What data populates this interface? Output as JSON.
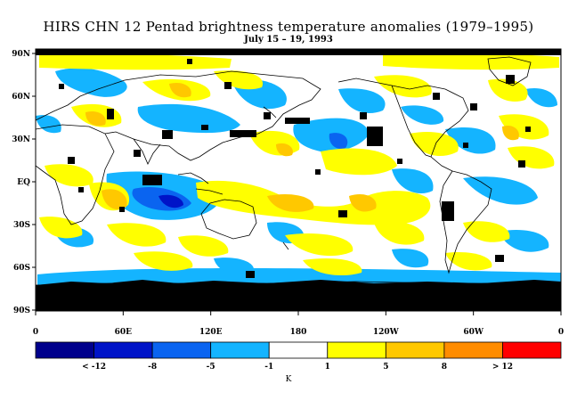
{
  "title": "HIRS CHN 12 Pentad brightness temperature anomalies (1979–1995)",
  "subtitle": "July 15 – 19, 1993",
  "map": {
    "lat_labels": [
      "90N",
      "60N",
      "30N",
      "EQ",
      "30S",
      "60S",
      "90S"
    ],
    "lon_labels": [
      "0",
      "60E",
      "120E",
      "180",
      "120W",
      "60W",
      "0"
    ],
    "missing_data_color": "#000000",
    "coastline_color": "#000000"
  },
  "legend": {
    "unit": "K",
    "colors": [
      "#00008c",
      "#0014c8",
      "#0a64f0",
      "#14b4ff",
      "#ffffff",
      "#ffff00",
      "#ffc800",
      "#ff8c00",
      "#ff0000"
    ],
    "labels": [
      "< -12",
      "-8",
      "-5",
      "-1",
      "1",
      "5",
      "8",
      "> 12"
    ]
  }
}
